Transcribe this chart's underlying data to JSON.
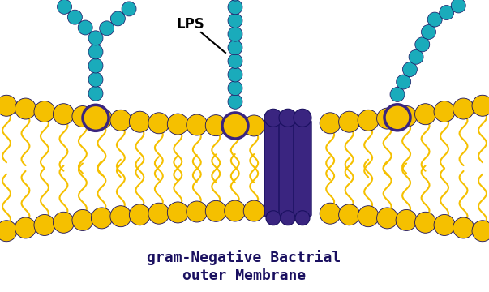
{
  "title_line1": "gram-Negative Bactrial",
  "title_line2": "outer Membrane",
  "lps_label": "LPS",
  "bg_color": "#ffffff",
  "cyan_color": "#1aabbb",
  "yellow_color": "#f5c000",
  "purple_color": "#3a2580",
  "outline_dark": "#1a1060",
  "text_color": "#1a1060",
  "figw": 6.03,
  "figh": 3.6,
  "dpi": 100
}
